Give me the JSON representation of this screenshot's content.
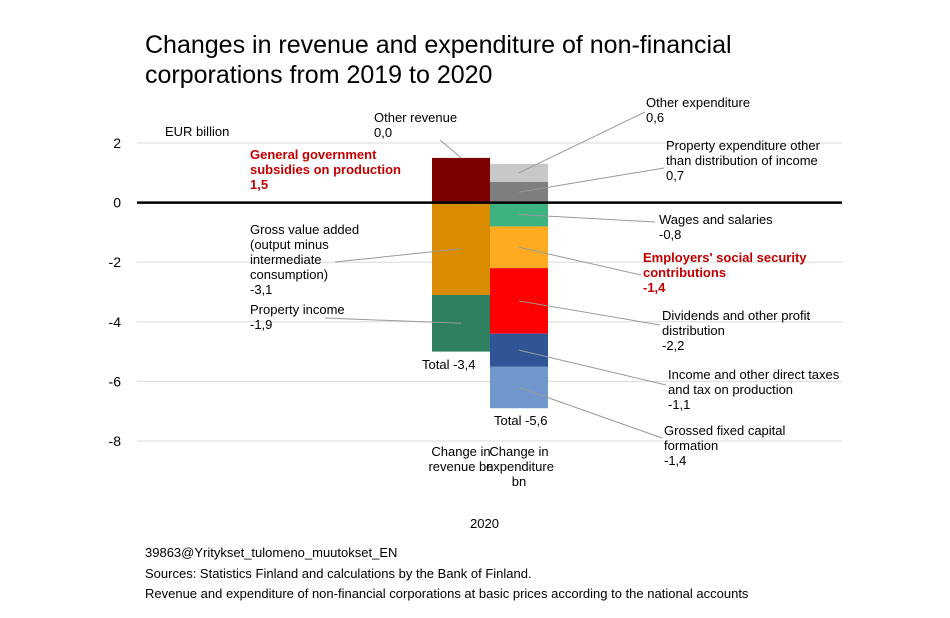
{
  "chart_data": {
    "type": "stacked-bar",
    "title": "Changes in revenue and expenditure of non-financial corporations from 2019 to 2020",
    "ylabel": "EUR billion",
    "xlabel": "2020",
    "categories": [
      "Change in revenue bn",
      "Change in expenditure bn"
    ],
    "series": [
      {
        "name": "Other revenue",
        "color": "#2f5597",
        "values": [
          0.0,
          null
        ],
        "value_labels": [
          "0,0",
          null
        ]
      },
      {
        "name": "General government subsidies on production",
        "color": "#7b0000",
        "emphasis": true,
        "values": [
          1.5,
          null
        ],
        "value_labels": [
          "1,5",
          null
        ]
      },
      {
        "name": "Gross value added (output minus intermediate consumption)",
        "color": "#d98c00",
        "values": [
          -3.1,
          null
        ],
        "value_labels": [
          "-3,1",
          null
        ]
      },
      {
        "name": "Property income",
        "color": "#2e8060",
        "values": [
          -1.9,
          null
        ],
        "value_labels": [
          "-1,9",
          null
        ]
      },
      {
        "name": "Other expenditure",
        "color": "#c8c8c8",
        "values": [
          null,
          0.6
        ],
        "value_labels": [
          null,
          "0,6"
        ]
      },
      {
        "name": "Property expenditure other than distribution of income",
        "color": "#7f7f7f",
        "values": [
          null,
          0.7
        ],
        "value_labels": [
          null,
          "0,7"
        ]
      },
      {
        "name": "Wages and salaries",
        "color": "#3db37f",
        "values": [
          null,
          -0.8
        ],
        "value_labels": [
          null,
          "-0,8"
        ]
      },
      {
        "name": "Employers' social security contributions",
        "color": "#ffab22",
        "emphasis": true,
        "values": [
          null,
          -1.4
        ],
        "value_labels": [
          null,
          "-1,4"
        ]
      },
      {
        "name": "Dividends and other profit distribution",
        "color": "#ff0000",
        "values": [
          null,
          -2.2
        ],
        "value_labels": [
          null,
          "-2,2"
        ]
      },
      {
        "name": "Income and other direct taxes and tax on production",
        "color": "#2f5597",
        "values": [
          null,
          -1.1
        ],
        "value_labels": [
          null,
          "-1,1"
        ]
      },
      {
        "name": "Grossed fixed capital formation",
        "color": "#7098cc",
        "values": [
          null,
          -1.4
        ],
        "value_labels": [
          null,
          "-1,4"
        ]
      }
    ],
    "annotations": [
      "Total -3,4",
      "Total -5,6"
    ],
    "ylim": [
      -8,
      2
    ],
    "yticks": [
      2,
      0,
      -2,
      -4,
      -6,
      -8
    ],
    "grid": true,
    "notes": [
      "39863@Yritykset_tulomeno_muutokset_EN",
      "Sources: Statistics Finland and calculations by the Bank of Finland.",
      "Revenue and expenditure of non-financial corporations at basic prices according to the national accounts"
    ]
  }
}
